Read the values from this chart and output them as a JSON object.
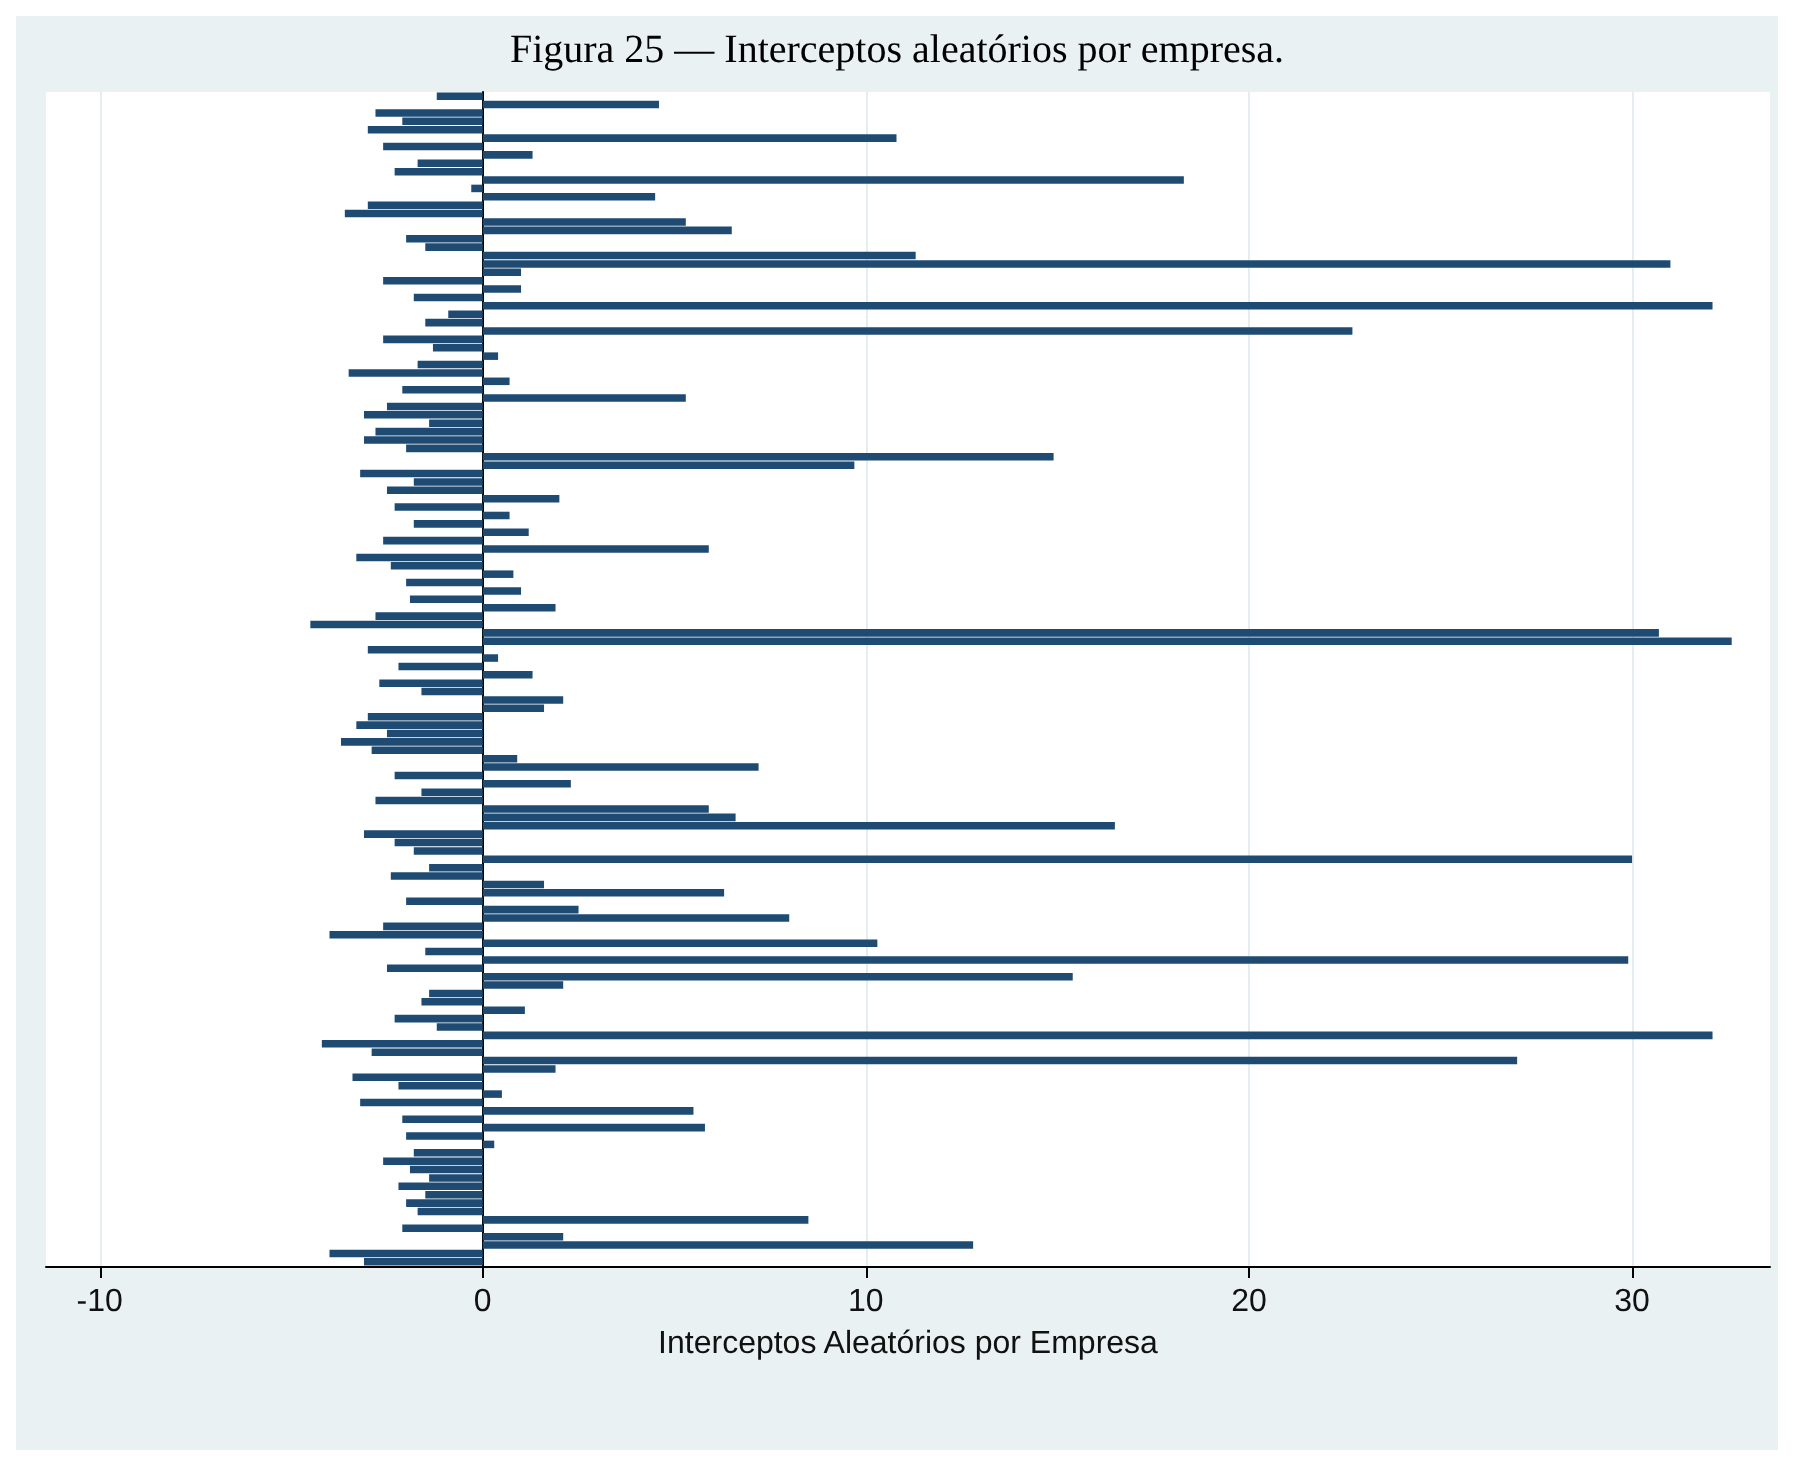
{
  "chart_data": {
    "type": "bar",
    "orientation": "horizontal",
    "title": "Figura 25 — Interceptos aleatórios por empresa.",
    "xlabel": "Interceptos Aleatórios por Empresa",
    "categories": [
      null,
      null,
      null,
      null,
      null,
      null,
      null,
      null,
      null,
      null,
      null,
      null,
      null,
      null,
      null,
      null,
      null,
      null,
      null,
      null,
      null,
      null,
      null,
      null,
      null,
      null,
      null,
      null,
      null,
      null,
      null,
      null,
      null,
      null,
      null,
      null,
      null,
      null,
      null,
      null,
      null,
      null,
      null,
      null,
      null,
      null,
      null,
      null,
      null,
      null,
      null,
      null,
      null,
      null,
      null,
      null,
      null,
      null,
      null,
      null,
      null,
      null,
      null,
      null,
      null,
      null,
      null,
      null,
      null,
      null,
      null,
      null,
      null,
      null,
      null,
      null,
      null,
      null,
      null,
      null,
      null,
      null,
      null,
      null,
      null,
      null,
      null,
      null,
      null,
      null,
      null,
      null,
      null,
      null,
      null,
      null,
      null,
      null,
      null,
      null,
      null,
      null,
      null,
      null,
      null,
      null,
      null,
      null,
      null,
      null,
      null,
      null,
      null,
      null,
      null,
      null,
      null,
      null,
      null,
      null,
      null,
      null,
      null,
      null,
      null,
      null,
      null,
      null,
      null,
      null,
      null,
      null,
      null,
      null,
      null,
      null,
      null,
      null,
      null,
      null
    ],
    "values": [
      -1.2,
      4.6,
      -2.8,
      -2.1,
      -3.0,
      10.8,
      -2.6,
      1.3,
      -1.7,
      -2.3,
      18.3,
      -0.3,
      4.5,
      -3.0,
      -3.6,
      5.3,
      6.5,
      -2.0,
      -1.5,
      11.3,
      31.0,
      1.0,
      -2.6,
      1.0,
      -1.8,
      32.1,
      -0.9,
      -1.5,
      22.7,
      -2.6,
      -1.3,
      0.4,
      -1.7,
      -3.5,
      0.7,
      -2.1,
      5.3,
      -2.5,
      -3.1,
      -1.4,
      -2.8,
      -3.1,
      -2.0,
      14.9,
      9.7,
      -3.2,
      -1.8,
      -2.5,
      2.0,
      -2.3,
      0.7,
      -1.8,
      1.2,
      -2.6,
      5.9,
      -3.3,
      -2.4,
      0.8,
      -2.0,
      1.0,
      -1.9,
      1.9,
      -2.8,
      -4.5,
      30.7,
      32.6,
      -3.0,
      0.4,
      -2.2,
      1.3,
      -2.7,
      -1.6,
      2.1,
      1.6,
      -3.0,
      -3.3,
      -2.5,
      -3.7,
      -2.9,
      0.9,
      7.2,
      -2.3,
      2.3,
      -1.6,
      -2.8,
      5.9,
      6.6,
      16.5,
      -3.1,
      -2.3,
      -1.8,
      30.0,
      -1.4,
      -2.4,
      1.6,
      6.3,
      -2.0,
      2.5,
      8.0,
      -2.6,
      -4.0,
      10.3,
      -1.5,
      29.9,
      -2.5,
      15.4,
      2.1,
      -1.4,
      -1.6,
      1.1,
      -2.3,
      -1.2,
      32.1,
      -4.2,
      -2.9,
      27.0,
      1.9,
      -3.4,
      -2.2,
      0.5,
      -3.2,
      5.5,
      -2.1,
      5.8,
      -2.0,
      0.3,
      -1.8,
      -2.6,
      -1.9,
      -1.4,
      -2.2,
      -1.5,
      -2.0,
      -1.7,
      8.5,
      -2.1,
      2.1,
      12.8,
      -4.0,
      -3.1
    ],
    "color": "#1f4b73",
    "xlim": [
      -11.4,
      33.6
    ],
    "xticks": [
      -10,
      0,
      10,
      20,
      30
    ],
    "grid": "x",
    "tick_labels": "x"
  }
}
